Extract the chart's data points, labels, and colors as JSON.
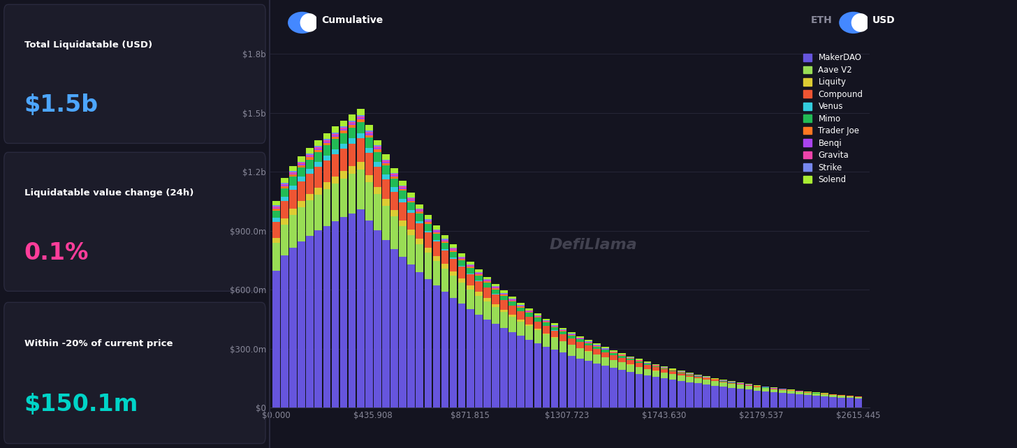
{
  "bg_color": "#141420",
  "card_bg": "#1c1c2a",
  "border_color": "#2a2a3e",
  "left_panels": [
    {
      "label": "Total Liquidatable (USD)",
      "value": "$1.5b",
      "value_color": "#4da6ff"
    },
    {
      "label": "Liquidatable value change (24h)",
      "value": "0.1%",
      "value_color": "#ff3d9a"
    },
    {
      "label": "Within -20% of current price",
      "value": "$150.1m",
      "value_color": "#00d4c8"
    }
  ],
  "chart_bg": "#141420",
  "x_labels": [
    "$0.000",
    "$435.908",
    "$871.815",
    "$1307.723",
    "$1743.630",
    "$2179.537",
    "$2615.445"
  ],
  "y_ticks": [
    0,
    300000000,
    600000000,
    900000000,
    1200000000,
    1500000000,
    1800000000
  ],
  "y_labels": [
    "$0",
    "$300.0m",
    "$600.0m",
    "$900.0m",
    "$1.2b",
    "$1.5b",
    "$1.8b"
  ],
  "y_max": 1800000000,
  "protocols": [
    "MakerDAO",
    "Aave V2",
    "Liquity",
    "Compound",
    "Venus",
    "Mimo",
    "Trader Joe",
    "Benqi",
    "Gravita",
    "Strike",
    "Solend"
  ],
  "protocol_colors": [
    "#6655dd",
    "#99dd55",
    "#ddcc33",
    "#ee5533",
    "#33ccdd",
    "#22bb55",
    "#ff7722",
    "#aa44ee",
    "#ee44aa",
    "#7788ee",
    "#aaee33"
  ],
  "n_bars": 70,
  "watermark": "DefiLlama",
  "toggle_color": "#4488ff"
}
